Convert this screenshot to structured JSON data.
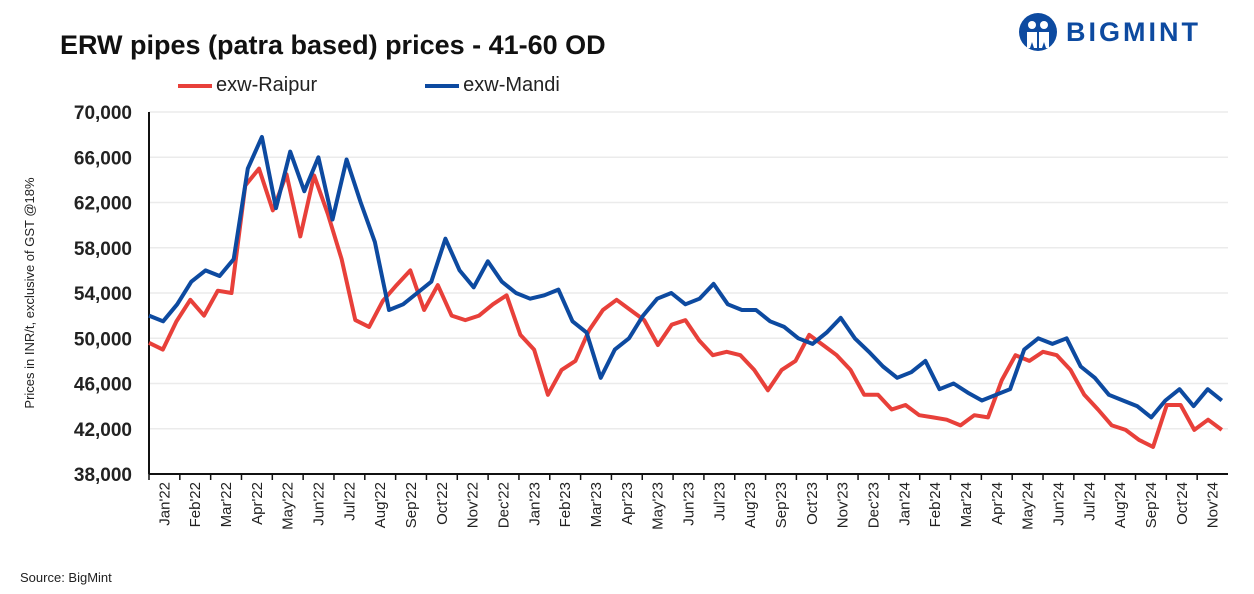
{
  "title": "ERW pipes (patra based) prices - 41-60 OD",
  "logo_text": "BIGMINT",
  "source": "Source: BigMint",
  "chart_data": {
    "type": "line",
    "title": "ERW pipes (patra based) prices - 41-60 OD",
    "ylabel": "Prices in INR/t, exclusive of GST @18%",
    "xlabel": "",
    "ylim": [
      38000,
      70000
    ],
    "yticks": [
      38000,
      42000,
      46000,
      50000,
      54000,
      58000,
      62000,
      66000,
      70000
    ],
    "ytick_labels": [
      "38,000",
      "42,000",
      "46,000",
      "50,000",
      "54,000",
      "58,000",
      "62,000",
      "66,000",
      "70,000"
    ],
    "xtick_labels": [
      "Jan'22",
      "Feb'22",
      "Mar'22",
      "Apr'22",
      "May'22",
      "Jun'22",
      "Jul'22",
      "Aug'22",
      "Sep'22",
      "Oct'22",
      "Nov'22",
      "Dec'22",
      "Jan'23",
      "Feb'23",
      "Mar'23",
      "Apr'23",
      "May'23",
      "Jun'23",
      "Jul'23",
      "Aug'23",
      "Sep'23",
      "Oct'23",
      "Nov'23",
      "Dec'23",
      "Jan'24",
      "Feb'24",
      "Mar'24",
      "Apr'24",
      "May'24",
      "Jun'24",
      "Jul'24",
      "Aug'24",
      "Sep'24",
      "Oct'24",
      "Nov'24"
    ],
    "x_range_months": [
      0,
      34.8
    ],
    "grid": true,
    "legend_position": "top",
    "series": [
      {
        "name": "exw-Raipur",
        "color": "#e8403a",
        "values": [
          49600,
          49000,
          51500,
          53400,
          52000,
          54200,
          54000,
          63500,
          65000,
          61300,
          64500,
          59000,
          64400,
          61000,
          57000,
          51600,
          51000,
          53300,
          54700,
          56000,
          52500,
          54700,
          52000,
          51600,
          52000,
          53000,
          53800,
          50300,
          49000,
          45000,
          47200,
          48000,
          50700,
          52500,
          53400,
          52500,
          51600,
          49400,
          51200,
          51600,
          49800,
          48500,
          48800,
          48500,
          47200,
          45400,
          47200,
          48000,
          50300,
          49400,
          48500,
          47200,
          45000,
          45000,
          43700,
          44100,
          43200,
          43000,
          42800,
          42300,
          43200,
          43000,
          46300,
          48500,
          48000,
          48800,
          48500,
          47200,
          45000,
          43700,
          42300,
          41900,
          41000,
          40400,
          44100,
          44100,
          41900,
          42800,
          41900
        ]
      },
      {
        "name": "exw-Mandi",
        "color": "#0d4aa0",
        "values": [
          52000,
          51500,
          53000,
          55000,
          56000,
          55500,
          57000,
          65000,
          67800,
          61500,
          66500,
          63000,
          66000,
          60500,
          65800,
          62000,
          58500,
          52500,
          53000,
          54000,
          55000,
          58800,
          56000,
          54500,
          56800,
          55000,
          54000,
          53500,
          53800,
          54300,
          51500,
          50500,
          46500,
          49000,
          50000,
          52000,
          53500,
          54000,
          53000,
          53500,
          54800,
          53000,
          52500,
          52500,
          51500,
          51000,
          50000,
          49500,
          50500,
          51800,
          50000,
          48800,
          47500,
          46500,
          47000,
          48000,
          45500,
          46000,
          45200,
          44500,
          45000,
          45500,
          49000,
          50000,
          49500,
          50000,
          47500,
          46500,
          45000,
          44500,
          44000,
          43000,
          44500,
          45500,
          44000,
          45500,
          44500
        ]
      }
    ]
  }
}
